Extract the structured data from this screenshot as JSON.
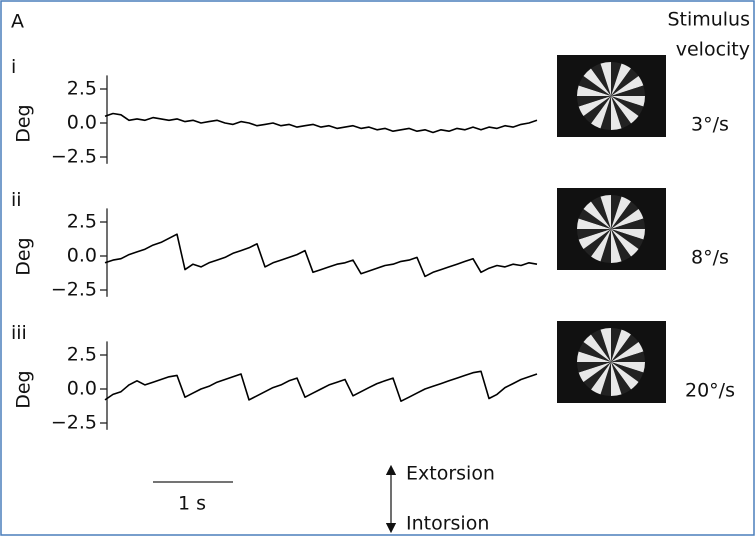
{
  "panel_label": "A",
  "stimulus_header": [
    "Stimulus",
    "velocity"
  ],
  "scale_bar": {
    "value": 1,
    "label": "1 s"
  },
  "direction": {
    "up": "Extorsion",
    "down": "Intorsion"
  },
  "chart_data": [
    {
      "type": "line",
      "label": "i",
      "ylabel": "Deg",
      "stimulus_label": "3°/s",
      "color": "#000",
      "xlim": [
        0,
        5.4
      ],
      "ylim": [
        -3,
        3.5
      ],
      "yticks": [
        2.5,
        {
          "value": 0,
          "label": "0.0"
        },
        {
          "value": -2.5,
          "label": "−2.5"
        }
      ],
      "x": [
        0,
        0.1,
        0.2,
        0.3,
        0.4,
        0.5,
        0.6,
        0.7,
        0.8,
        0.9,
        1,
        1.1,
        1.2,
        1.3,
        1.4,
        1.5,
        1.6,
        1.7,
        1.8,
        1.9,
        2,
        2.1,
        2.2,
        2.3,
        2.4,
        2.5,
        2.6,
        2.7,
        2.8,
        2.9,
        3,
        3.1,
        3.2,
        3.3,
        3.4,
        3.5,
        3.6,
        3.7,
        3.8,
        3.9,
        4,
        4.1,
        4.2,
        4.3,
        4.4,
        4.5,
        4.6,
        4.7,
        4.8,
        4.9,
        5,
        5.1,
        5.2,
        5.3,
        5.4
      ],
      "values": [
        0.5,
        0.7,
        0.6,
        0.2,
        0.3,
        0.2,
        0.4,
        0.3,
        0.2,
        0.3,
        0.1,
        0.2,
        0.0,
        0.1,
        0.2,
        0.0,
        -0.1,
        0.1,
        0.0,
        -0.2,
        -0.1,
        0.0,
        -0.2,
        -0.1,
        -0.3,
        -0.2,
        -0.1,
        -0.3,
        -0.2,
        -0.4,
        -0.3,
        -0.2,
        -0.4,
        -0.3,
        -0.5,
        -0.4,
        -0.6,
        -0.5,
        -0.4,
        -0.6,
        -0.5,
        -0.7,
        -0.5,
        -0.6,
        -0.4,
        -0.5,
        -0.3,
        -0.5,
        -0.3,
        -0.4,
        -0.2,
        -0.3,
        -0.1,
        0.0,
        0.2
      ]
    },
    {
      "type": "line",
      "label": "ii",
      "ylabel": "Deg",
      "stimulus_label": "8°/s",
      "color": "#000",
      "xlim": [
        0,
        5.4
      ],
      "ylim": [
        -3,
        3.5
      ],
      "yticks": [
        2.5,
        {
          "value": 0,
          "label": "0.0"
        },
        {
          "value": -2.5,
          "label": "−2.5"
        }
      ],
      "x": [
        0,
        0.1,
        0.2,
        0.3,
        0.4,
        0.5,
        0.6,
        0.7,
        0.8,
        0.9,
        1,
        1.1,
        1.2,
        1.3,
        1.4,
        1.5,
        1.6,
        1.7,
        1.8,
        1.9,
        2,
        2.1,
        2.2,
        2.3,
        2.4,
        2.5,
        2.6,
        2.7,
        2.8,
        2.9,
        3,
        3.1,
        3.2,
        3.3,
        3.4,
        3.5,
        3.6,
        3.7,
        3.8,
        3.9,
        4,
        4.1,
        4.2,
        4.3,
        4.4,
        4.5,
        4.6,
        4.7,
        4.8,
        4.9,
        5,
        5.1,
        5.2,
        5.3,
        5.4
      ],
      "values": [
        -0.5,
        -0.3,
        -0.2,
        0.1,
        0.3,
        0.5,
        0.8,
        1.0,
        1.3,
        1.6,
        -1.0,
        -0.6,
        -0.8,
        -0.5,
        -0.3,
        -0.1,
        0.2,
        0.4,
        0.6,
        0.9,
        -0.8,
        -0.5,
        -0.3,
        -0.1,
        0.1,
        0.4,
        -1.2,
        -1.0,
        -0.8,
        -0.6,
        -0.5,
        -0.3,
        -1.3,
        -1.1,
        -0.9,
        -0.7,
        -0.6,
        -0.4,
        -0.3,
        -0.1,
        -1.5,
        -1.2,
        -1.0,
        -0.8,
        -0.6,
        -0.4,
        -0.2,
        -1.2,
        -0.9,
        -0.7,
        -0.8,
        -0.6,
        -0.7,
        -0.5,
        -0.6
      ]
    },
    {
      "type": "line",
      "label": "iii",
      "ylabel": "Deg",
      "stimulus_label": "20°/s",
      "color": "#000",
      "xlim": [
        0,
        5.4
      ],
      "ylim": [
        -3,
        3.5
      ],
      "yticks": [
        2.5,
        {
          "value": 0,
          "label": "0.0"
        },
        {
          "value": -2.5,
          "label": "−2.5"
        }
      ],
      "x": [
        0,
        0.1,
        0.2,
        0.3,
        0.4,
        0.5,
        0.6,
        0.7,
        0.8,
        0.9,
        1,
        1.1,
        1.2,
        1.3,
        1.4,
        1.5,
        1.6,
        1.7,
        1.8,
        1.9,
        2,
        2.1,
        2.2,
        2.3,
        2.4,
        2.5,
        2.6,
        2.7,
        2.8,
        2.9,
        3,
        3.1,
        3.2,
        3.3,
        3.4,
        3.5,
        3.6,
        3.7,
        3.8,
        3.9,
        4,
        4.1,
        4.2,
        4.3,
        4.4,
        4.5,
        4.6,
        4.7,
        4.8,
        4.9,
        5,
        5.1,
        5.2,
        5.3,
        5.4
      ],
      "values": [
        -0.8,
        -0.4,
        -0.2,
        0.3,
        0.6,
        0.3,
        0.5,
        0.7,
        0.9,
        1.0,
        -0.6,
        -0.3,
        0.0,
        0.2,
        0.5,
        0.7,
        0.9,
        1.1,
        -0.8,
        -0.5,
        -0.2,
        0.1,
        0.3,
        0.6,
        0.8,
        -0.6,
        -0.3,
        0.0,
        0.3,
        0.5,
        0.7,
        -0.5,
        -0.2,
        0.1,
        0.4,
        0.6,
        0.8,
        -0.9,
        -0.6,
        -0.3,
        0.0,
        0.2,
        0.4,
        0.6,
        0.8,
        1.0,
        1.2,
        1.3,
        -0.7,
        -0.4,
        0.1,
        0.4,
        0.7,
        0.9,
        1.1
      ]
    }
  ]
}
